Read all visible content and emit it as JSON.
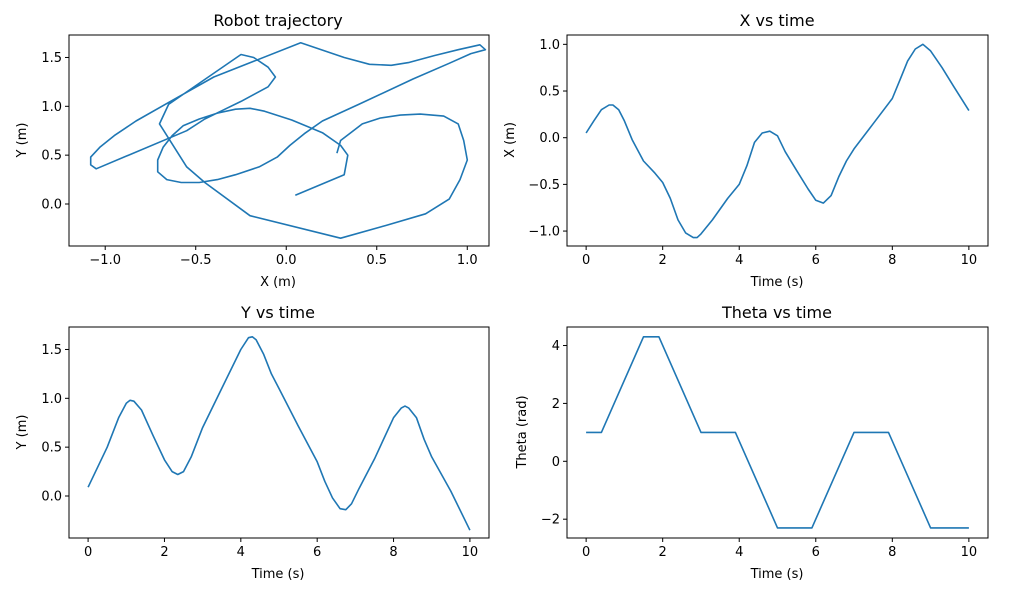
{
  "colors": {
    "line": "#1f77b4",
    "axes": "#000000",
    "background": "#ffffff"
  },
  "chart_data": [
    {
      "type": "line",
      "title": "Robot trajectory",
      "xlabel": "X (m)",
      "ylabel": "Y (m)",
      "xlim": [
        -1.2,
        1.12
      ],
      "ylim": [
        -0.43,
        1.73
      ],
      "xticks": [
        -1.0,
        -0.5,
        0.0,
        0.5,
        1.0
      ],
      "xtick_labels": [
        "−1.0",
        "−0.5",
        "0.0",
        "0.5",
        "1.0"
      ],
      "yticks": [
        0.0,
        0.5,
        1.0,
        1.5
      ],
      "ytick_labels": [
        "0.0",
        "0.5",
        "1.0",
        "1.5"
      ],
      "grid": false,
      "series": [
        {
          "x": [
            0.05,
            0.32,
            0.34,
            0.3,
            0.2,
            0.03,
            -0.12,
            -0.2,
            -0.28,
            -0.38,
            -0.48,
            -0.57,
            -0.63,
            -0.68,
            -0.71,
            -0.71,
            -0.66,
            -0.58,
            -0.48,
            -0.38,
            -0.28,
            -0.15,
            -0.05,
            0.02,
            0.1,
            0.2,
            0.4,
            0.7,
            0.9,
            1.02,
            1.1,
            1.07,
            0.95,
            0.82,
            0.68,
            0.58,
            0.46,
            0.32,
            0.08,
            -0.4,
            -0.63,
            -0.83,
            -0.95,
            -1.03,
            -1.08,
            -1.08,
            -1.05,
            -0.55,
            -0.45,
            -0.35,
            -0.25,
            -0.18,
            -0.1,
            -0.06,
            -0.1,
            -0.18,
            -0.25,
            -0.65,
            -0.7,
            -0.55,
            -0.45,
            -0.2,
            0.3,
            0.55,
            0.77,
            0.9,
            0.96,
            1.0,
            0.98,
            0.95,
            0.87,
            0.74,
            0.63,
            0.52,
            0.42,
            0.3,
            0.28
          ],
          "y": [
            0.09,
            0.3,
            0.5,
            0.6,
            0.73,
            0.86,
            0.95,
            0.98,
            0.97,
            0.93,
            0.87,
            0.8,
            0.7,
            0.58,
            0.45,
            0.33,
            0.25,
            0.22,
            0.22,
            0.25,
            0.3,
            0.38,
            0.48,
            0.6,
            0.72,
            0.85,
            1.02,
            1.28,
            1.44,
            1.54,
            1.58,
            1.63,
            1.58,
            1.52,
            1.45,
            1.42,
            1.43,
            1.5,
            1.65,
            1.3,
            1.06,
            0.85,
            0.7,
            0.58,
            0.48,
            0.4,
            0.36,
            0.75,
            0.87,
            0.96,
            1.05,
            1.12,
            1.2,
            1.3,
            1.4,
            1.5,
            1.53,
            1.02,
            0.82,
            0.38,
            0.22,
            -0.12,
            -0.35,
            -0.22,
            -0.1,
            0.05,
            0.25,
            0.45,
            0.65,
            0.82,
            0.9,
            0.92,
            0.91,
            0.88,
            0.82,
            0.65,
            0.52
          ],
          "order_note": ""
        }
      ]
    },
    {
      "type": "line",
      "title": "X vs time",
      "xlabel": "Time (s)",
      "ylabel": "X (m)",
      "xlim": [
        -0.5,
        10.5
      ],
      "ylim": [
        -1.16,
        1.1
      ],
      "xticks": [
        0,
        2,
        4,
        6,
        8,
        10
      ],
      "xtick_labels": [
        "0",
        "2",
        "4",
        "6",
        "8",
        "10"
      ],
      "yticks": [
        -1.0,
        -0.5,
        0.0,
        0.5,
        1.0
      ],
      "ytick_labels": [
        "−1.0",
        "−0.5",
        "0.0",
        "0.5",
        "1.0"
      ],
      "grid": false,
      "series": [
        {
          "x": [
            0,
            0.2,
            0.4,
            0.6,
            0.7,
            0.85,
            1.0,
            1.2,
            1.5,
            1.8,
            2.0,
            2.2,
            2.4,
            2.6,
            2.8,
            2.9,
            3.0,
            3.3,
            3.7,
            4.0,
            4.2,
            4.4,
            4.6,
            4.8,
            5.0,
            5.2,
            5.5,
            5.8,
            6.0,
            6.2,
            6.4,
            6.6,
            6.8,
            7.0,
            7.5,
            8.0,
            8.2,
            8.4,
            8.6,
            8.8,
            9.0,
            9.3,
            9.6,
            10.0
          ],
          "y": [
            0.05,
            0.18,
            0.3,
            0.35,
            0.35,
            0.3,
            0.18,
            -0.02,
            -0.25,
            -0.38,
            -0.48,
            -0.65,
            -0.88,
            -1.02,
            -1.07,
            -1.07,
            -1.03,
            -0.88,
            -0.65,
            -0.5,
            -0.3,
            -0.05,
            0.05,
            0.07,
            0.02,
            -0.15,
            -0.35,
            -0.55,
            -0.67,
            -0.7,
            -0.62,
            -0.42,
            -0.25,
            -0.12,
            0.15,
            0.42,
            0.62,
            0.82,
            0.95,
            1.0,
            0.93,
            0.75,
            0.55,
            0.29
          ]
        }
      ]
    },
    {
      "type": "line",
      "title": "Y vs time",
      "xlabel": "Time (s)",
      "ylabel": "Y (m)",
      "xlim": [
        -0.5,
        10.5
      ],
      "ylim": [
        -0.43,
        1.73
      ],
      "xticks": [
        0,
        2,
        4,
        6,
        8,
        10
      ],
      "xtick_labels": [
        "0",
        "2",
        "4",
        "6",
        "8",
        "10"
      ],
      "yticks": [
        0.0,
        0.5,
        1.0,
        1.5
      ],
      "ytick_labels": [
        "0.0",
        "0.5",
        "1.0",
        "1.5"
      ],
      "grid": false,
      "series": [
        {
          "x": [
            0,
            0.5,
            0.8,
            1.0,
            1.1,
            1.2,
            1.4,
            1.7,
            2.0,
            2.2,
            2.35,
            2.5,
            2.7,
            3.0,
            3.5,
            4.0,
            4.2,
            4.3,
            4.4,
            4.6,
            4.8,
            5.0,
            5.5,
            6.0,
            6.2,
            6.4,
            6.6,
            6.75,
            6.9,
            7.1,
            7.5,
            8.0,
            8.2,
            8.3,
            8.4,
            8.6,
            8.8,
            9.0,
            9.5,
            10.0
          ],
          "y": [
            0.09,
            0.5,
            0.8,
            0.95,
            0.98,
            0.97,
            0.88,
            0.62,
            0.37,
            0.25,
            0.22,
            0.25,
            0.4,
            0.7,
            1.1,
            1.5,
            1.62,
            1.63,
            1.6,
            1.45,
            1.25,
            1.1,
            0.72,
            0.35,
            0.15,
            -0.02,
            -0.13,
            -0.14,
            -0.08,
            0.08,
            0.38,
            0.8,
            0.9,
            0.92,
            0.9,
            0.8,
            0.58,
            0.4,
            0.05,
            -0.35
          ]
        }
      ]
    },
    {
      "type": "line",
      "title": "Theta vs time",
      "xlabel": "Time (s)",
      "ylabel": "Theta (rad)",
      "xlim": [
        -0.5,
        10.5
      ],
      "ylim": [
        -2.65,
        4.64
      ],
      "xticks": [
        0,
        2,
        4,
        6,
        8,
        10
      ],
      "xtick_labels": [
        "0",
        "2",
        "4",
        "6",
        "8",
        "10"
      ],
      "yticks": [
        -2,
        0,
        2,
        4
      ],
      "ytick_labels": [
        "−2",
        "0",
        "2",
        "4"
      ],
      "grid": false,
      "series": [
        {
          "x": [
            0,
            0.4,
            1.5,
            1.9,
            3.0,
            3.9,
            5.0,
            5.9,
            7.0,
            7.9,
            9.0,
            10.0
          ],
          "y": [
            1.0,
            1.0,
            4.3,
            4.3,
            1.0,
            1.0,
            -2.3,
            -2.3,
            1.0,
            1.0,
            -2.3,
            -2.3
          ]
        }
      ]
    }
  ]
}
